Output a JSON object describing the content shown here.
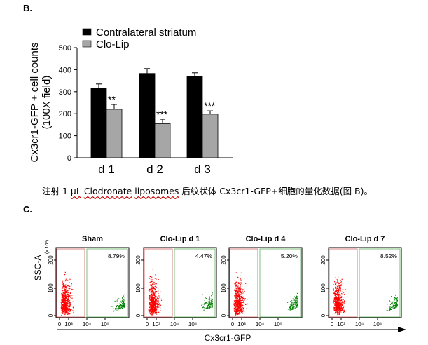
{
  "panel_b_label": "B.",
  "panel_c_label": "C.",
  "caption": {
    "p1": "注射 1 ",
    "p2": "μL",
    "p3": " ",
    "p4": "Clodronate",
    "p5": " ",
    "p6": "liposomes",
    "p7": " 后纹状体 Cx3cr1-GFP+细胞的量化数据(图 B)。"
  },
  "chart_data": [
    {
      "type": "bar",
      "title": "",
      "categories": [
        "d 1",
        "d 2",
        "d 3"
      ],
      "series": [
        {
          "name": "Contralateral striatum",
          "color": "#000000",
          "values": [
            315,
            383,
            370
          ],
          "errors": [
            20,
            22,
            16
          ]
        },
        {
          "name": "Clo-Lip",
          "color": "#a6a6a6",
          "values": [
            220,
            155,
            198
          ],
          "errors": [
            22,
            20,
            15
          ]
        }
      ],
      "significance": [
        "**",
        "***",
        "***"
      ],
      "ylabel_line1": "Cx3cr1-GFP + cell counts",
      "ylabel_line2": "(100X field)",
      "xlabel": "",
      "ylim": [
        0,
        500
      ],
      "yticks": [
        0,
        100,
        200,
        300,
        400,
        500
      ],
      "legend_position": "top"
    },
    {
      "type": "scatter",
      "subtype": "flow-cytometry-panels",
      "panels": [
        {
          "title": "Sham",
          "percent": "8.79%"
        },
        {
          "title": "Clo-Lip d 1",
          "percent": "4.47%"
        },
        {
          "title": "Clo-Lip d 4",
          "percent": "5.20%"
        },
        {
          "title": "Clo-Lip d 7",
          "percent": "8.52%"
        }
      ],
      "ylabel": "SSC-A",
      "yunit": "(x 10³)",
      "yticks": [
        "0",
        "100",
        "200"
      ],
      "xticks": [
        "0",
        "10³",
        "10⁴",
        "10⁵"
      ],
      "xlabel": "Cx3cr1-GFP",
      "colors": {
        "negative": "#ff0000",
        "positive": "#008000"
      }
    }
  ]
}
